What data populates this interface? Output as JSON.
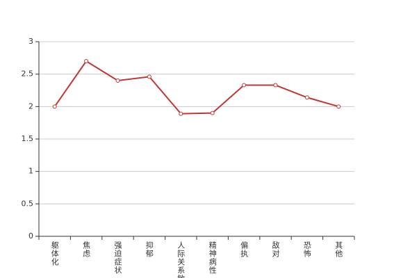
{
  "chart_data": {
    "type": "line",
    "categories": [
      "躯体化",
      "焦虑",
      "强迫症状",
      "抑郁",
      "人际关系敏感",
      "精神病性",
      "偏执",
      "敌对",
      "恐怖",
      "其他"
    ],
    "series": [
      {
        "values": [
          2.0,
          2.7,
          2.4,
          2.46,
          1.89,
          1.9,
          2.33,
          2.33,
          2.14,
          2.0
        ],
        "color": "#c23531"
      }
    ],
    "ylim": [
      0,
      3
    ],
    "yticks": [
      0,
      0.5,
      1,
      1.5,
      2,
      2.5,
      3
    ],
    "grid": true
  }
}
